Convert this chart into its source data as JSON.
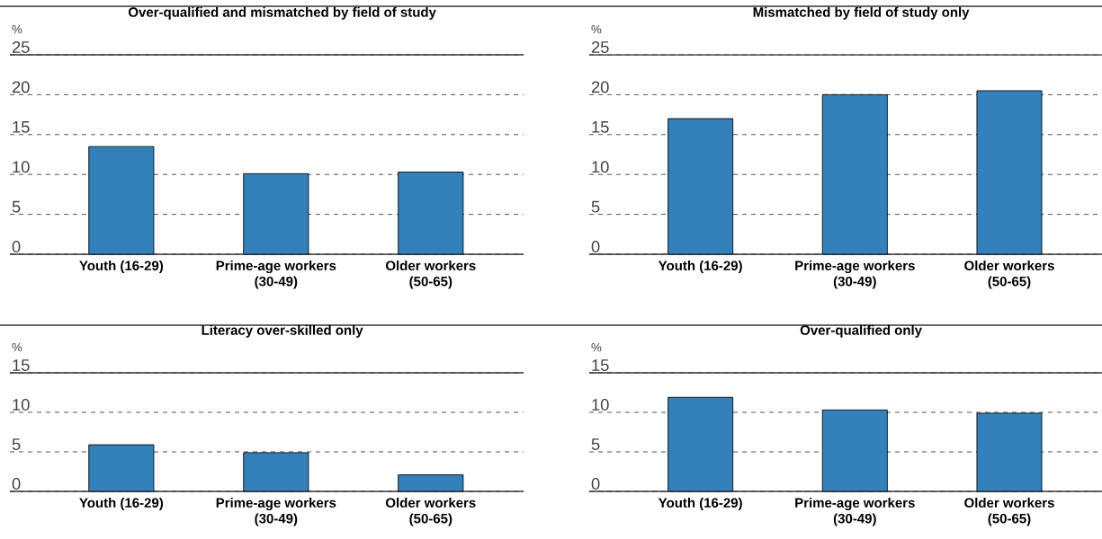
{
  "chart_data": [
    {
      "type": "bar",
      "title": "Over-qualified and mismatched by field of study",
      "ylabel": "%",
      "categories": [
        "Youth (16-29)",
        "Prime-age workers (30-49)",
        "Older workers (50-65)"
      ],
      "values": [
        13.5,
        10.1,
        10.3
      ],
      "color": "#3380ba",
      "ylim": [
        0,
        25
      ],
      "yticks": [
        0,
        5,
        10,
        15,
        20,
        25
      ],
      "grid": "y"
    },
    {
      "type": "bar",
      "title": "Mismatched by field of study only",
      "ylabel": "%",
      "categories": [
        "Youth (16-29)",
        "Prime-age workers (30-49)",
        "Older workers (50-65)"
      ],
      "values": [
        17.0,
        20.0,
        20.5
      ],
      "color": "#3380ba",
      "ylim": [
        0,
        25
      ],
      "yticks": [
        0,
        5,
        10,
        15,
        20,
        25
      ],
      "grid": "y"
    },
    {
      "type": "bar",
      "title": "Literacy over-skilled only",
      "ylabel": "%",
      "categories": [
        "Youth (16-29)",
        "Prime-age workers (30-49)",
        "Older workers (50-65)"
      ],
      "values": [
        5.9,
        4.9,
        2.1
      ],
      "color": "#3380ba",
      "ylim": [
        0,
        15
      ],
      "yticks": [
        0,
        5,
        10,
        15
      ],
      "grid": "y"
    },
    {
      "type": "bar",
      "title": "Over-qualified only",
      "ylabel": "%",
      "categories": [
        "Youth (16-29)",
        "Prime-age workers (30-49)",
        "Older workers (50-65)"
      ],
      "values": [
        11.9,
        10.3,
        9.9
      ],
      "color": "#3380ba",
      "ylim": [
        0,
        15
      ],
      "yticks": [
        0,
        5,
        10,
        15
      ],
      "grid": "y"
    }
  ]
}
